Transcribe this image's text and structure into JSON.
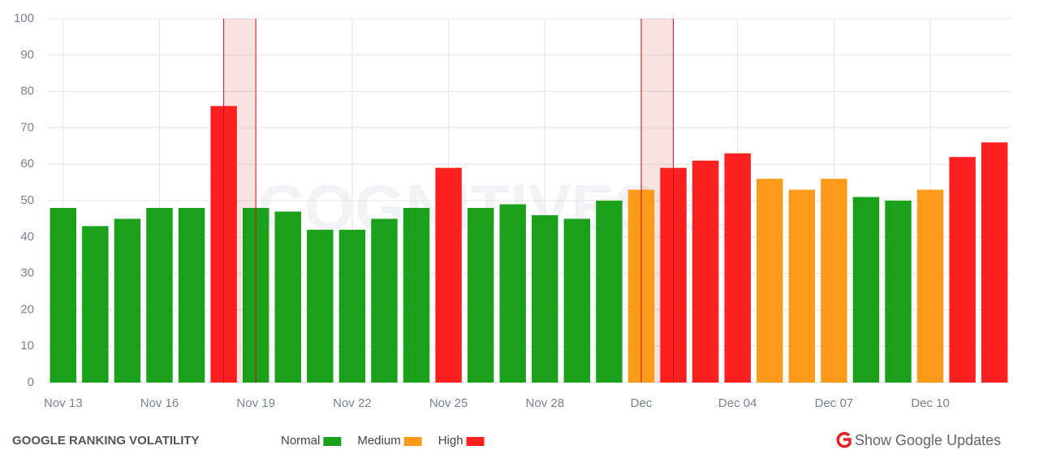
{
  "chart_data": {
    "type": "bar",
    "title": "GOOGLE RANKING VOLATILITY",
    "watermark": "COGNITIVESEO",
    "categories": [
      "Nov 13",
      null,
      null,
      "Nov 16",
      null,
      null,
      "Nov 19",
      null,
      null,
      "Nov 22",
      null,
      null,
      "Nov 25",
      null,
      null,
      "Nov 28",
      null,
      null,
      "Dec",
      null,
      null,
      "Dec 04",
      null,
      null,
      "Dec 07",
      null,
      null,
      "Dec 10",
      null,
      null
    ],
    "values": [
      48,
      43,
      45,
      48,
      48,
      76,
      48,
      47,
      42,
      42,
      45,
      48,
      59,
      48,
      49,
      46,
      45,
      50,
      53,
      59,
      61,
      63,
      56,
      53,
      56,
      51,
      50,
      53,
      62,
      66
    ],
    "colors": [
      "#1aa01a",
      "#1aa01a",
      "#1aa01a",
      "#1aa01a",
      "#1aa01a",
      "#ff1f1f",
      "#1aa01a",
      "#1aa01a",
      "#1aa01a",
      "#1aa01a",
      "#1aa01a",
      "#1aa01a",
      "#ff1f1f",
      "#1aa01a",
      "#1aa01a",
      "#1aa01a",
      "#1aa01a",
      "#1aa01a",
      "#ff9a1a",
      "#ff1f1f",
      "#ff1f1f",
      "#ff1f1f",
      "#ff9a1a",
      "#ff9a1a",
      "#ff9a1a",
      "#1aa01a",
      "#1aa01a",
      "#ff9a1a",
      "#ff1f1f",
      "#ff1f1f"
    ],
    "legend": [
      {
        "name": "Normal",
        "color": "#1aa01a"
      },
      {
        "name": "Medium",
        "color": "#ff9a1a"
      },
      {
        "name": "High",
        "color": "#ff1f1f"
      }
    ],
    "update_bands": [
      [
        5,
        6
      ],
      [
        18,
        19
      ]
    ],
    "ylim": [
      0,
      100
    ],
    "yticks": [
      0,
      10,
      20,
      30,
      40,
      50,
      60,
      70,
      80,
      90,
      100
    ],
    "grid": true,
    "toggle": "Show Google Updates"
  }
}
